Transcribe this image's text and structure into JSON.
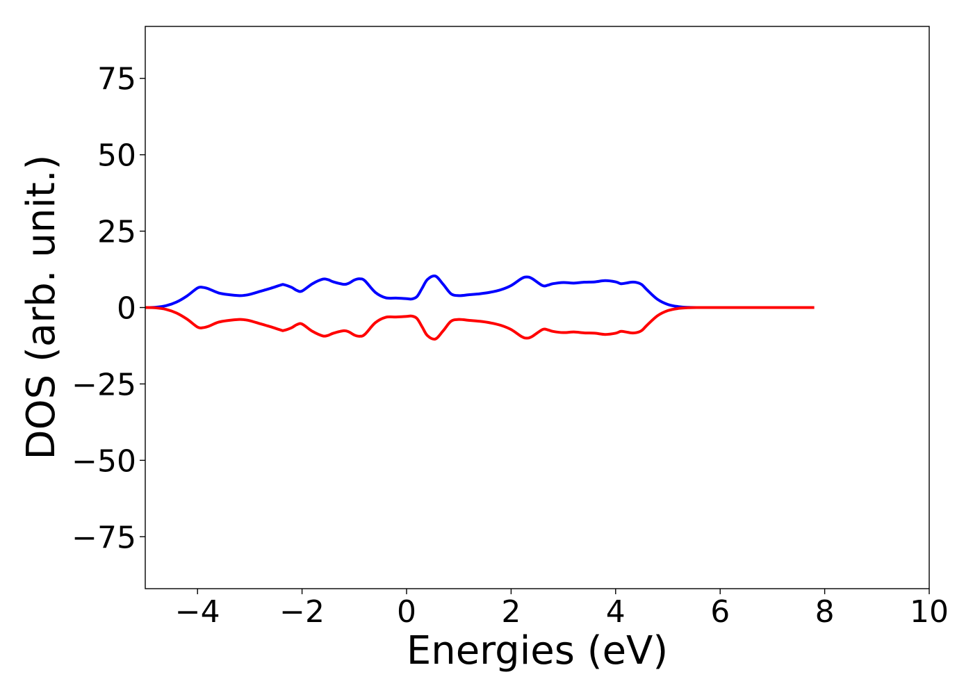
{
  "chart_data": {
    "type": "line",
    "title": "",
    "xlabel": "Energies (eV)",
    "ylabel": "DOS (arb. unit.)",
    "xlim": [
      -5,
      10
    ],
    "ylim": [
      -92,
      92
    ],
    "xticks": [
      -4,
      -2,
      0,
      2,
      4,
      6,
      8,
      10
    ],
    "xtick_labels": [
      "−4",
      "−2",
      "0",
      "2",
      "4",
      "6",
      "8",
      "10"
    ],
    "yticks": [
      75,
      50,
      25,
      0,
      -25,
      -50,
      -75
    ],
    "ytick_labels": [
      "75",
      "50",
      "25",
      "0",
      "−25",
      "−50",
      "−75"
    ],
    "grid": false,
    "legend": "none",
    "colors": {
      "spin_up": "#0000ff",
      "spin_down": "#ff0000",
      "axes": "#000000",
      "background": "#ffffff"
    },
    "x": [
      -5.0,
      -4.8,
      -4.6,
      -4.4,
      -4.2,
      -4.0,
      -3.9,
      -3.8,
      -3.6,
      -3.4,
      -3.2,
      -3.1,
      -3.0,
      -2.8,
      -2.6,
      -2.4,
      -2.35,
      -2.2,
      -2.1,
      -2.0,
      -1.8,
      -1.6,
      -1.5,
      -1.4,
      -1.2,
      -1.1,
      -1.0,
      -0.9,
      -0.8,
      -0.6,
      -0.4,
      -0.2,
      0.0,
      0.1,
      0.2,
      0.3,
      0.4,
      0.55,
      0.7,
      0.85,
      1.0,
      1.2,
      1.4,
      1.6,
      1.8,
      2.0,
      2.2,
      2.3,
      2.4,
      2.6,
      2.7,
      2.8,
      3.0,
      3.2,
      3.4,
      3.6,
      3.8,
      4.0,
      4.1,
      4.2,
      4.3,
      4.4,
      4.5,
      4.6,
      4.8,
      5.0,
      5.2,
      5.4,
      5.6,
      6.0,
      7.0,
      7.8
    ],
    "series": [
      {
        "values": [
          0.0,
          0.1,
          0.6,
          1.8,
          3.8,
          6.4,
          6.6,
          6.2,
          4.8,
          4.2,
          3.9,
          4.0,
          4.3,
          5.3,
          6.3,
          7.4,
          7.5,
          6.6,
          5.6,
          5.4,
          7.8,
          9.3,
          9.1,
          8.4,
          7.6,
          8.0,
          9.0,
          9.4,
          8.8,
          5.0,
          3.2,
          3.1,
          2.9,
          2.8,
          3.6,
          6.4,
          9.2,
          10.3,
          7.6,
          4.5,
          3.9,
          4.2,
          4.5,
          5.0,
          5.8,
          7.2,
          9.5,
          10.0,
          9.5,
          7.2,
          7.3,
          7.8,
          8.2,
          8.0,
          8.3,
          8.4,
          8.8,
          8.4,
          7.8,
          8.0,
          8.3,
          8.2,
          7.5,
          5.8,
          2.7,
          1.0,
          0.3,
          0.05,
          0.0,
          0.0,
          0.0,
          0.0
        ]
      },
      {
        "values": [
          0.0,
          -0.1,
          -0.6,
          -1.8,
          -3.8,
          -6.4,
          -6.6,
          -6.2,
          -4.8,
          -4.2,
          -3.9,
          -4.0,
          -4.3,
          -5.3,
          -6.3,
          -7.4,
          -7.5,
          -6.6,
          -5.6,
          -5.4,
          -7.8,
          -9.3,
          -9.1,
          -8.4,
          -7.6,
          -8.0,
          -9.0,
          -9.4,
          -8.8,
          -5.0,
          -3.2,
          -3.1,
          -2.9,
          -2.8,
          -3.6,
          -6.4,
          -9.2,
          -10.3,
          -7.6,
          -4.5,
          -3.9,
          -4.2,
          -4.5,
          -5.0,
          -5.8,
          -7.2,
          -9.5,
          -10.0,
          -9.5,
          -7.2,
          -7.3,
          -7.8,
          -8.2,
          -8.0,
          -8.3,
          -8.4,
          -8.8,
          -8.4,
          -7.8,
          -8.0,
          -8.3,
          -8.2,
          -7.5,
          -5.8,
          -2.7,
          -1.0,
          -0.3,
          -0.05,
          0.0,
          0.0,
          0.0,
          0.0
        ]
      }
    ]
  }
}
